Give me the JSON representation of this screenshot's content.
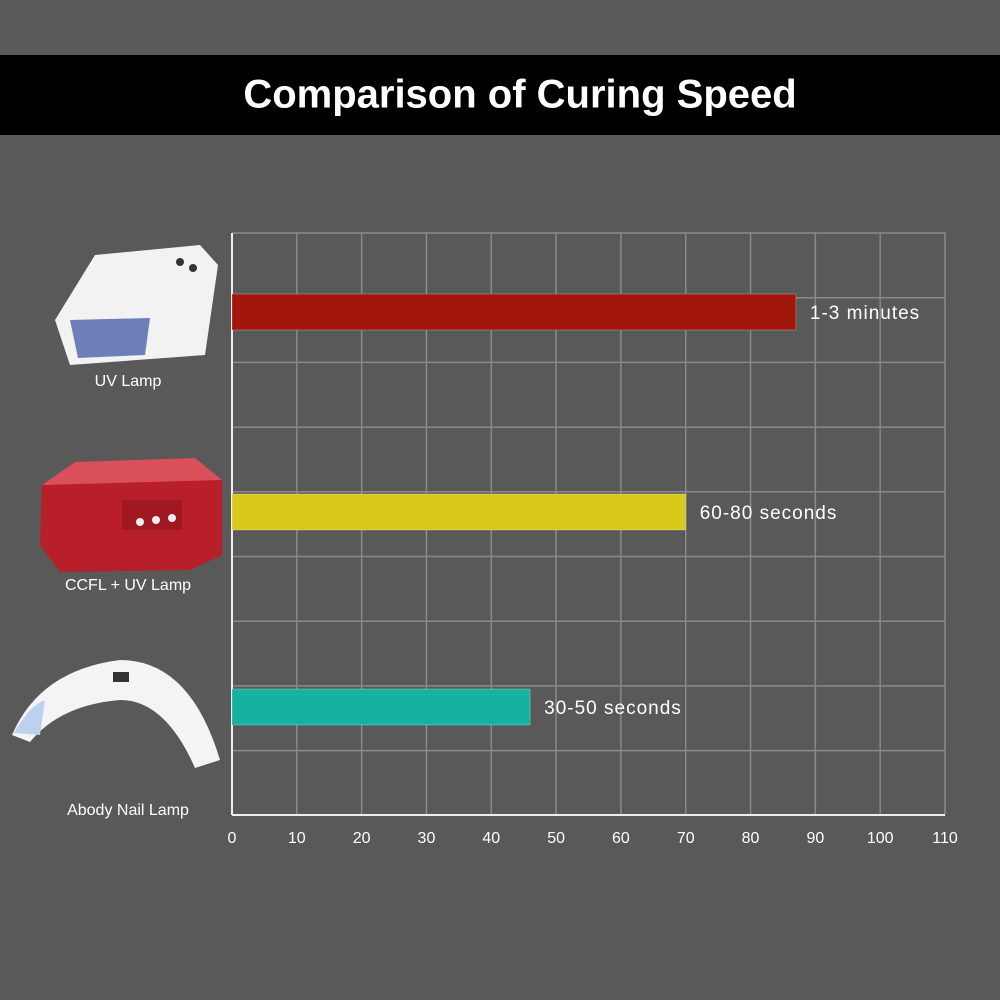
{
  "chart_data": {
    "type": "bar",
    "orientation": "horizontal",
    "title": "Comparison of Curing Speed",
    "categories": [
      "UV Lamp",
      "CCFL + UV Lamp",
      "Abody Nail Lamp"
    ],
    "values": [
      87,
      70,
      46
    ],
    "colors": [
      "#a3160a",
      "#d9c91c",
      "#16b2a1"
    ],
    "annotations": [
      "1-3 minutes",
      "60-80 seconds",
      "30-50 seconds"
    ],
    "xlim": [
      0,
      110
    ],
    "xticks": [
      0,
      10,
      20,
      30,
      40,
      50,
      60,
      70,
      80,
      90,
      100,
      110
    ],
    "grid": true
  }
}
